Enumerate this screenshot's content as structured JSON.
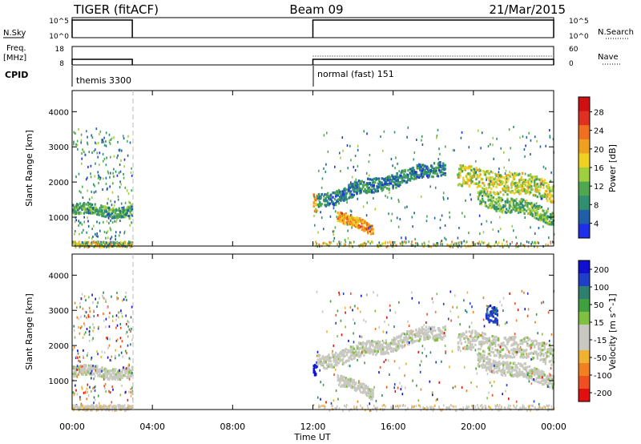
{
  "header": {
    "radar": "TIGER (fitACF)",
    "beam": "Beam 09",
    "date": "21/Mar/2015"
  },
  "colors": {
    "power": [
      "#1f2fe8",
      "#1f5fa8",
      "#2f8f6f",
      "#4fa84f",
      "#9fcf3f",
      "#f0d020",
      "#f0a020",
      "#f07020",
      "#e03020",
      "#d01010"
    ],
    "velocity": [
      "#e01010",
      "#f05020",
      "#f08020",
      "#f0b030",
      "#c8c8c0",
      "#c8c8c0",
      "#80c040",
      "#40a040",
      "#2f7f6f",
      "#1f3fc8",
      "#1010d0"
    ]
  },
  "panels": {
    "nsky": {
      "label": "N.Sky",
      "left_ticks": [
        "10^5",
        "10^0"
      ],
      "right_ticks": [
        "10^5",
        "10^0"
      ],
      "right_label": "N.Search"
    },
    "freq": {
      "label_line1": "Freq.",
      "label_line2": "[MHz]",
      "left_ticks": [
        "18",
        "8"
      ],
      "right_ticks": [
        "60",
        "0"
      ],
      "right_label": "Nave"
    },
    "cpid": {
      "label": "CPID",
      "modes": [
        "themis 3300",
        "normal (fast) 151"
      ]
    }
  },
  "chart_data": [
    {
      "type": "heatmap",
      "name_hint": "power",
      "xlabel": "Time UT",
      "ylabel": "Slant Range [km]",
      "x_ticks": [
        "00:00",
        "04:00",
        "08:00",
        "12:00",
        "16:00",
        "20:00",
        "00:00"
      ],
      "xlim_hours": [
        0,
        24
      ],
      "ylim": [
        180,
        4600
      ],
      "y_ticks": [
        1000,
        2000,
        3000,
        4000
      ],
      "colorbar_label": "Power [dB]",
      "colorbar_ticks": [
        "28",
        "24",
        "20",
        "16",
        "12",
        "8",
        "4"
      ],
      "colorbar_range": [
        0,
        30
      ],
      "data_intervals_hours": [
        [
          0,
          3
        ],
        [
          12,
          24
        ]
      ],
      "features": [
        {
          "t0": 0.0,
          "t1": 2.95,
          "range0": 1250,
          "range1": 1200,
          "width": 150,
          "value": 9
        },
        {
          "t0": 12.0,
          "t1": 12.2,
          "range0": 1400,
          "range1": 1400,
          "width": 250,
          "value": 18
        },
        {
          "t0": 12.2,
          "t1": 18.6,
          "range0": 1500,
          "range1": 2500,
          "width": 200,
          "value": 7
        },
        {
          "t0": 13.2,
          "t1": 15.0,
          "range0": 1100,
          "range1": 600,
          "width": 150,
          "value": 20
        },
        {
          "t0": 19.2,
          "t1": 24.0,
          "range0": 2200,
          "range1": 1800,
          "width": 300,
          "value": 15
        },
        {
          "t0": 20.2,
          "t1": 24.0,
          "range0": 1600,
          "range1": 1050,
          "width": 200,
          "value": 11
        }
      ]
    },
    {
      "type": "heatmap",
      "name_hint": "velocity",
      "xlabel": "Time UT",
      "ylabel": "Slant Range [km]",
      "x_ticks": [
        "00:00",
        "04:00",
        "08:00",
        "12:00",
        "16:00",
        "20:00",
        "00:00"
      ],
      "xlim_hours": [
        0,
        24
      ],
      "ylim": [
        180,
        4600
      ],
      "y_ticks": [
        1000,
        2000,
        3000,
        4000
      ],
      "colorbar_label": "Velocity [m s^-1]",
      "colorbar_ticks": [
        "200",
        "100",
        "50",
        "15",
        "-15",
        "-50",
        "-100",
        "-200"
      ],
      "colorbar_range": [
        -250,
        250
      ],
      "data_intervals_hours": [
        [
          0,
          3
        ],
        [
          12,
          24
        ]
      ],
      "features": [
        {
          "t0": 0.0,
          "t1": 2.95,
          "range0": 1300,
          "range1": 1250,
          "width": 150,
          "value": 0
        },
        {
          "t0": 12.0,
          "t1": 12.2,
          "range0": 1400,
          "range1": 1400,
          "width": 250,
          "value": 220
        },
        {
          "t0": 12.2,
          "t1": 18.6,
          "range0": 1550,
          "range1": 2500,
          "width": 200,
          "value": 0
        },
        {
          "t0": 13.2,
          "t1": 15.0,
          "range0": 1100,
          "range1": 600,
          "width": 150,
          "value": 0
        },
        {
          "t0": 19.2,
          "t1": 24.0,
          "range0": 2200,
          "range1": 1800,
          "width": 300,
          "value": 0
        },
        {
          "t0": 20.2,
          "t1": 24.0,
          "range0": 1600,
          "range1": 1050,
          "width": 200,
          "value": 0
        },
        {
          "t0": 20.6,
          "t1": 21.2,
          "range0": 3000,
          "range1": 2900,
          "width": 250,
          "value": 180
        }
      ]
    }
  ]
}
